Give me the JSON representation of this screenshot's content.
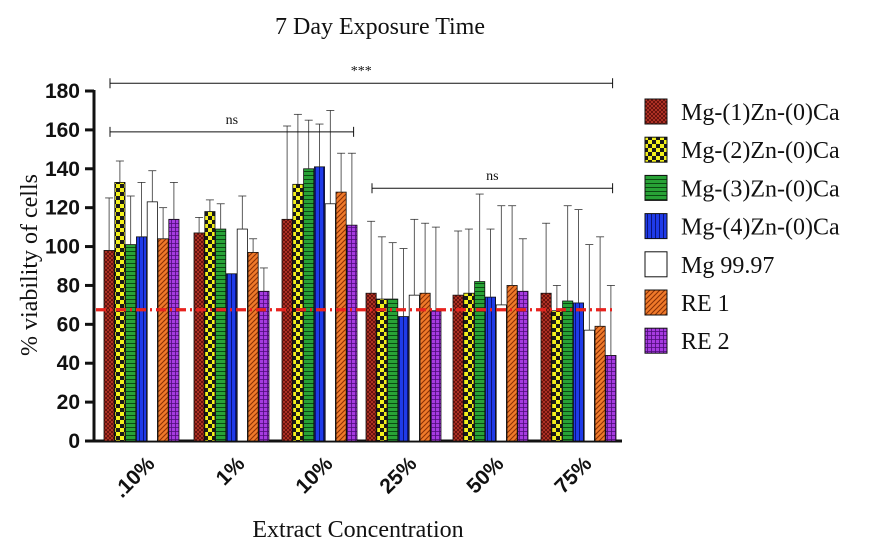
{
  "chart_data": {
    "type": "bar",
    "title": "7 Day Exposure Time",
    "xlabel": "Extract Concentration",
    "ylabel": "% viability of cells",
    "ylim": [
      0,
      180
    ],
    "yticks": [
      "0",
      "20",
      "40",
      "60",
      "80",
      "100",
      "120",
      "140",
      "160",
      "180"
    ],
    "categories": [
      ".10%",
      "1%",
      "10%",
      "25%",
      "50%",
      "75%"
    ],
    "legend_position": "right",
    "reference_line": {
      "value": 67.5,
      "color": "#e8231e",
      "style": "dash-dot"
    },
    "series": [
      {
        "name": "Mg-(1)Zn-(0)Ca",
        "pattern": "crosshatch-red",
        "color": "#b5231c",
        "values": [
          98,
          107,
          114,
          76,
          75,
          76
        ],
        "errors": [
          27,
          8,
          48,
          37,
          33,
          36
        ]
      },
      {
        "name": "Mg-(2)Zn-(0)Ca",
        "pattern": "checker-yellow",
        "color": "#f2ef1f",
        "values": [
          133,
          118,
          132,
          73,
          76,
          67
        ],
        "errors": [
          11,
          6,
          36,
          32,
          33,
          13
        ]
      },
      {
        "name": "Mg-(3)Zn-(0)Ca",
        "pattern": "hlines-green",
        "color": "#1f9a2b",
        "values": [
          101,
          109,
          140,
          73,
          82,
          72
        ],
        "errors": [
          25,
          13,
          25,
          29,
          45,
          49
        ]
      },
      {
        "name": "Mg-(4)Zn-(0)Ca",
        "pattern": "vlines-blue",
        "color": "#1830d6",
        "values": [
          105,
          86,
          141,
          64,
          74,
          71
        ],
        "errors": [
          28,
          0,
          22,
          35,
          35,
          48
        ]
      },
      {
        "name": "Mg 99.97",
        "pattern": "white",
        "color": "#ffffff",
        "values": [
          123,
          109,
          122,
          75,
          70,
          57
        ],
        "errors": [
          16,
          17,
          48,
          39,
          51,
          44
        ]
      },
      {
        "name": "RE 1",
        "pattern": "diagonal-orange",
        "color": "#e96a1e",
        "values": [
          104,
          97,
          128,
          76,
          80,
          59
        ],
        "errors": [
          16,
          7,
          20,
          36,
          41,
          46
        ]
      },
      {
        "name": "RE 2",
        "pattern": "grid-purple",
        "color": "#9a2bd1",
        "values": [
          114,
          77,
          111,
          67,
          77,
          44
        ],
        "errors": [
          19,
          12,
          37,
          43,
          27,
          36
        ]
      }
    ],
    "annotations": [
      {
        "text": "***",
        "from_category": 0,
        "to_category": 5,
        "y": 184
      },
      {
        "text": "ns",
        "from_category": 0,
        "to_category": 2,
        "y": 159
      },
      {
        "text": "ns",
        "from_category": 3,
        "to_category": 5,
        "y": 130
      }
    ]
  }
}
